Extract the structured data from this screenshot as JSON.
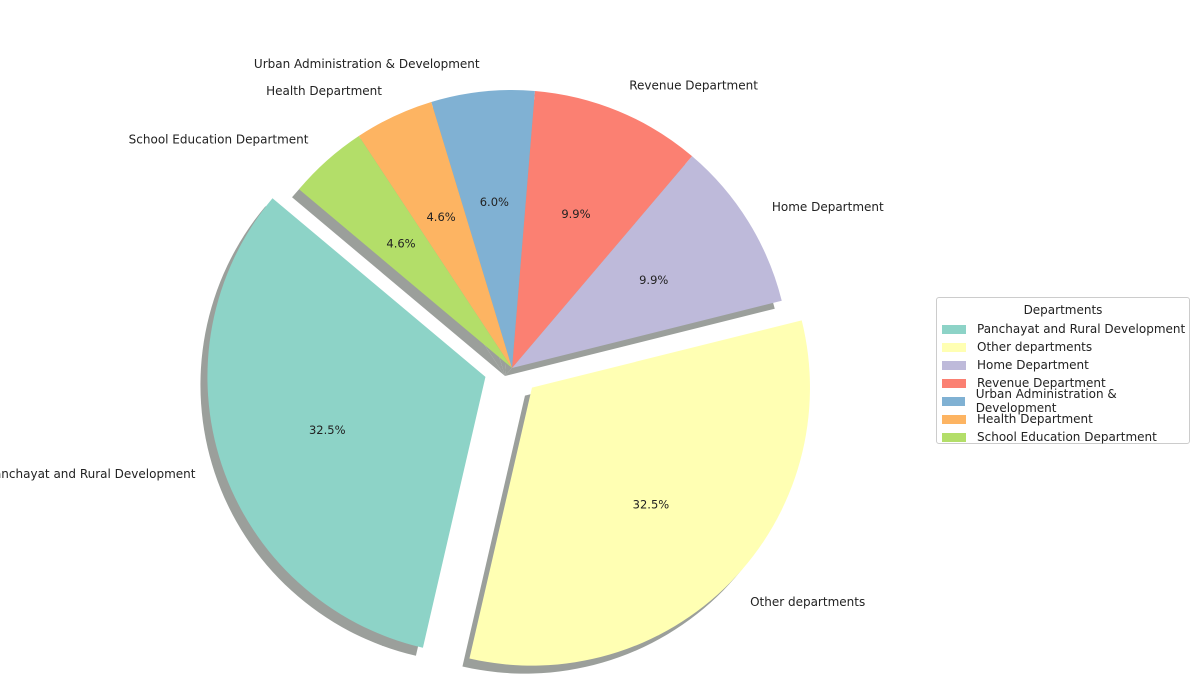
{
  "chart_data": {
    "type": "pie",
    "title": "",
    "categories": [
      "Panchayat and Rural Development",
      "Other departments",
      "Home Department",
      "Revenue Department",
      "Urban Administration & Development",
      "Health Department",
      "School Education Department"
    ],
    "values": [
      32.5,
      32.5,
      9.9,
      9.9,
      6.0,
      4.6,
      4.6
    ],
    "pct_labels": [
      "32.5%",
      "32.5%",
      "9.9%",
      "9.9%",
      "6.0%",
      "4.6%",
      "4.6%"
    ],
    "colors": [
      "#8dd3c7",
      "#ffffb3",
      "#bebada",
      "#fb8072",
      "#80b1d3",
      "#fdb462",
      "#b3de69"
    ],
    "exploded": [
      true,
      true,
      false,
      false,
      false,
      false,
      false
    ],
    "start_angle_deg": 140,
    "counterclockwise": true,
    "shadow": true,
    "legend": {
      "title": "Departments",
      "placement": "center-right"
    }
  }
}
